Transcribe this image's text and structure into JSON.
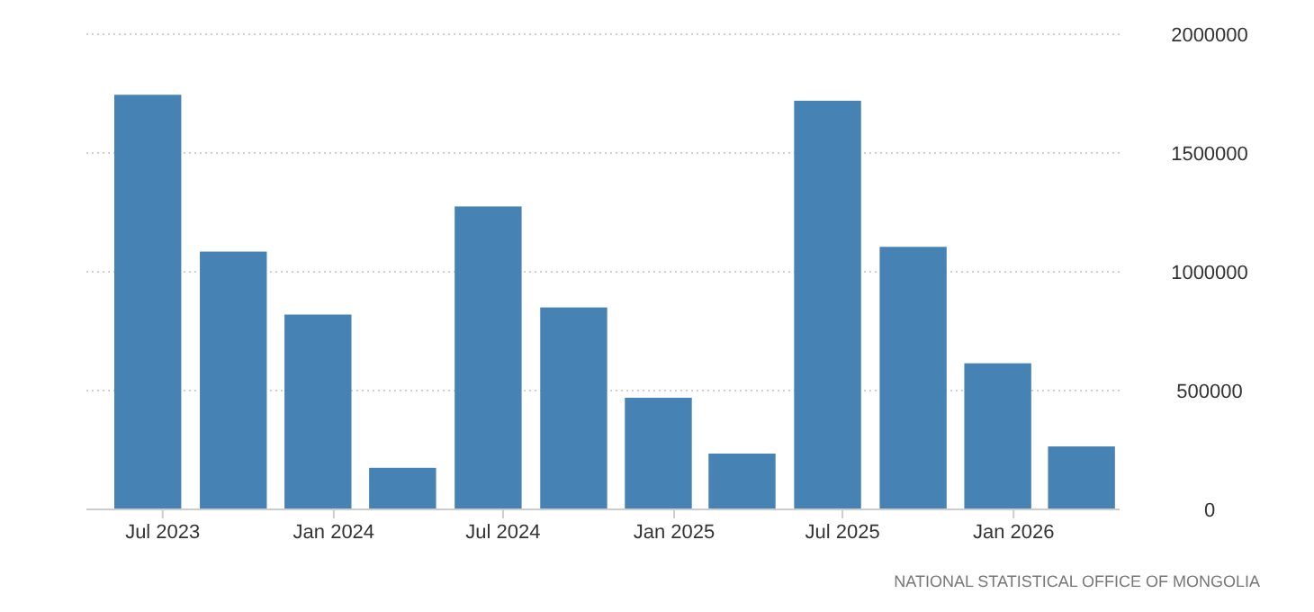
{
  "chart_data": {
    "type": "bar",
    "x": [
      "2023-06-15",
      "2023-09-15",
      "2023-12-15",
      "2024-03-15",
      "2024-06-15",
      "2024-09-15",
      "2024-12-15",
      "2025-03-15",
      "2025-06-15",
      "2025-09-15",
      "2025-12-15",
      "2026-03-15"
    ],
    "values": [
      1745000,
      1085000,
      820000,
      175000,
      1275000,
      850000,
      470000,
      235000,
      1720000,
      1105000,
      615000,
      265000
    ],
    "color": "#4682b4",
    "xlim": [
      "2023-04-10",
      "2026-04-25"
    ],
    "xticks": [
      {
        "value": "2023-07-01",
        "label": "Jul 2023"
      },
      {
        "value": "2024-01-01",
        "label": "Jan 2024"
      },
      {
        "value": "2024-07-01",
        "label": "Jul 2024"
      },
      {
        "value": "2025-01-01",
        "label": "Jan 2025"
      },
      {
        "value": "2025-07-01",
        "label": "Jul 2025"
      },
      {
        "value": "2026-01-01",
        "label": "Jan 2026"
      }
    ],
    "ylim": [
      0,
      2000000
    ],
    "yticks": [
      0,
      500000,
      1000000,
      1500000,
      2000000
    ],
    "grid": "y",
    "annotations": [
      "NATIONAL STATISTICAL OFFICE OF MONGOLIA"
    ]
  }
}
